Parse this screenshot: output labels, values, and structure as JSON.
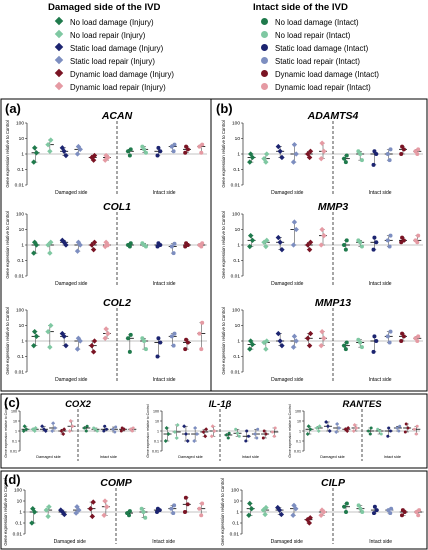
{
  "legend": {
    "damaged_title": "Damaged side of the IVD",
    "intact_title": "Intact side of the IVD",
    "damaged_items": [
      {
        "label": "No load damage (Injury)",
        "color": "#1f7a4c"
      },
      {
        "label": "No load repair (Injury)",
        "color": "#7fc8a2"
      },
      {
        "label": "Static load damage (Injury)",
        "color": "#1c2470"
      },
      {
        "label": "Static load repair (Injury)",
        "color": "#7d8ec0"
      },
      {
        "label": "Dynamic load damage (Injury)",
        "color": "#7a1424"
      },
      {
        "label": "Dynamic load repair (Injury)",
        "color": "#e59aa3"
      }
    ],
    "intact_items": [
      {
        "label": "No load damage (Intact)",
        "color": "#1f7a4c"
      },
      {
        "label": "No load repair (Intact)",
        "color": "#7fc8a2"
      },
      {
        "label": "Static load damage (Intact)",
        "color": "#1c2470"
      },
      {
        "label": "Static load repair (Intact)",
        "color": "#7d8ec0"
      },
      {
        "label": "Dynamic load damage (Intact)",
        "color": "#7a1424"
      },
      {
        "label": "Dynamic load repair (Intact)",
        "color": "#e59aa3"
      }
    ]
  },
  "panel_labels": {
    "a": "(a)",
    "b": "(b)",
    "c": "(c)",
    "d": "(d)"
  },
  "chart_data": [
    {
      "type": "scatter",
      "panel": "a",
      "title": "ACAN",
      "ylabel": "Gene expression relative to Control",
      "yscale": "log",
      "ylim": [
        0.01,
        100
      ],
      "yticks": [
        "100",
        "10",
        "1",
        "0.1",
        "0.01"
      ],
      "group_labels": [
        "Damaged side",
        "Intact side"
      ],
      "groups": [
        [
          0.3,
          1.2,
          2.5
        ],
        [
          1.5,
          4,
          8
        ],
        [
          0.8,
          1.5,
          2.5
        ],
        [
          1,
          2,
          3
        ],
        [
          0.4,
          0.6,
          0.8
        ],
        [
          0.4,
          0.6,
          0.8
        ],
        [
          0.8,
          1.5,
          2
        ],
        [
          1.2,
          2,
          3
        ],
        [
          0.8,
          1.5,
          2.5
        ],
        [
          1.5,
          3,
          4
        ],
        [
          1.2,
          2,
          3
        ],
        [
          1.2,
          3,
          4
        ]
      ]
    },
    {
      "type": "scatter",
      "panel": "a",
      "title": "COL1",
      "ylabel": "Gene expression relative to Control",
      "yscale": "log",
      "ylim": [
        0.01,
        100
      ],
      "yticks": [
        "100",
        "10",
        "1",
        "0.1",
        "0.01"
      ],
      "group_labels": [
        "Damaged side",
        "Intact side"
      ],
      "groups": [
        [
          0.3,
          1,
          1.5
        ],
        [
          0.3,
          1,
          1.5
        ],
        [
          1,
          1.5,
          2
        ],
        [
          0.4,
          1,
          1.5
        ],
        [
          0.5,
          1,
          1.5
        ],
        [
          0.8,
          1,
          1.5
        ],
        [
          0.8,
          1,
          1.3
        ],
        [
          0.8,
          1,
          1.3
        ],
        [
          0.8,
          1,
          1.3
        ],
        [
          0.3,
          0.8,
          1.2
        ],
        [
          0.8,
          1,
          1.3
        ],
        [
          0.8,
          1,
          1.3
        ]
      ]
    },
    {
      "type": "scatter",
      "panel": "a",
      "title": "COL2",
      "ylabel": "Gene expression relative to Control",
      "yscale": "log",
      "ylim": [
        0.01,
        100
      ],
      "yticks": [
        "100",
        "10",
        "1",
        "0.1",
        "0.01"
      ],
      "group_labels": [
        "Damaged side",
        "Intact side"
      ],
      "groups": [
        [
          0.5,
          2,
          4
        ],
        [
          0.4,
          4,
          10
        ],
        [
          0.5,
          2,
          3
        ],
        [
          0.3,
          1,
          1.5
        ],
        [
          0.2,
          0.5,
          1
        ],
        [
          1.5,
          3,
          6
        ],
        [
          0.2,
          1.5,
          2.5
        ],
        [
          0.3,
          1,
          1.5
        ],
        [
          0.1,
          0.8,
          1.5
        ],
        [
          0.5,
          2,
          3
        ],
        [
          0.3,
          0.8,
          1.2
        ],
        [
          0.3,
          3,
          15
        ]
      ]
    },
    {
      "type": "scatter",
      "panel": "b",
      "title": "ADAMTS4",
      "ylabel": "Gene expression relative to Control",
      "yscale": "log",
      "ylim": [
        0.01,
        100
      ],
      "yticks": [
        "100",
        "10",
        "1",
        "0.1",
        "0.01"
      ],
      "group_labels": [
        "Damaged side",
        "Intact side"
      ],
      "groups": [
        [
          0.3,
          0.6,
          1
        ],
        [
          0.3,
          0.5,
          1
        ],
        [
          0.6,
          1.5,
          3
        ],
        [
          0.3,
          1,
          4
        ],
        [
          0.6,
          1,
          1.5
        ],
        [
          0.5,
          1.5,
          5
        ],
        [
          0.3,
          0.5,
          0.8
        ],
        [
          0.4,
          1,
          1.5
        ],
        [
          0.2,
          1,
          1.5
        ],
        [
          0.4,
          1,
          2
        ],
        [
          1,
          2,
          3
        ],
        [
          1,
          1.5,
          2
        ]
      ]
    },
    {
      "type": "scatter",
      "panel": "b",
      "title": "MMP3",
      "ylabel": "Gene expression relative to Control",
      "yscale": "log",
      "ylim": [
        0.01,
        100
      ],
      "yticks": [
        "100",
        "10",
        "1",
        "0.1",
        "0.01"
      ],
      "group_labels": [
        "Damaged side",
        "Intact side"
      ],
      "groups": [
        [
          0.8,
          2,
          4
        ],
        [
          0.8,
          1.5,
          2
        ],
        [
          0.5,
          1.5,
          3
        ],
        [
          1,
          10,
          30
        ],
        [
          0.5,
          1,
          1.5
        ],
        [
          1,
          4,
          10
        ],
        [
          0.5,
          1,
          2
        ],
        [
          0.8,
          1.5,
          2
        ],
        [
          0.5,
          1.5,
          3
        ],
        [
          0.8,
          2,
          4
        ],
        [
          1.5,
          2,
          3
        ],
        [
          1.5,
          2,
          4
        ]
      ]
    },
    {
      "type": "scatter",
      "panel": "b",
      "title": "MMP13",
      "ylabel": "Gene expression relative to Control",
      "yscale": "log",
      "ylim": [
        0.01,
        100
      ],
      "yticks": [
        "100",
        "10",
        "1",
        "0.1",
        "0.01"
      ],
      "group_labels": [
        "Damaged side",
        "Intact side"
      ],
      "groups": [
        [
          0.3,
          0.6,
          1
        ],
        [
          0.3,
          0.8,
          1
        ],
        [
          0.5,
          1,
          3
        ],
        [
          0.4,
          1,
          2
        ],
        [
          0.5,
          1.5,
          3
        ],
        [
          0.5,
          1.5,
          4
        ],
        [
          0.3,
          0.5,
          0.8
        ],
        [
          0.4,
          0.8,
          1.2
        ],
        [
          0.2,
          1,
          2
        ],
        [
          0.8,
          2,
          4
        ],
        [
          1,
          2,
          3
        ],
        [
          1,
          1.5,
          2
        ]
      ]
    },
    {
      "type": "scatter",
      "panel": "c",
      "title": "COX2",
      "ylabel": "Gene expression relative to Control",
      "yscale": "log",
      "ylim": [
        0.01,
        100
      ],
      "yticks": [
        "100",
        "10",
        "1",
        "0.1",
        "0.01"
      ],
      "group_labels": [
        "Damaged side",
        "Intact side"
      ],
      "groups": [
        [
          1,
          1.5,
          3
        ],
        [
          1,
          1.5,
          2
        ],
        [
          1,
          1.5,
          3
        ],
        [
          1,
          2,
          6
        ],
        [
          0.5,
          1,
          1.5
        ],
        [
          1,
          3,
          10
        ],
        [
          1,
          2,
          3
        ],
        [
          1,
          1.5,
          2
        ],
        [
          1,
          1.5,
          3
        ],
        [
          0.8,
          1.5,
          2.5
        ],
        [
          1,
          1.5,
          2
        ],
        [
          1,
          1.5,
          2
        ]
      ]
    },
    {
      "type": "scatter",
      "panel": "c",
      "title": "IL-1β",
      "ylabel": "Gene expression relative to Control",
      "yscale": "log",
      "ylim": [
        0.01,
        100
      ],
      "yticks": [
        "100",
        "10",
        "1",
        "0.1",
        "0.01"
      ],
      "group_labels": [
        "Damaged side",
        "Intact side"
      ],
      "groups": [
        [
          0.1,
          0.5,
          2
        ],
        [
          0.2,
          0.8,
          4
        ],
        [
          0.1,
          0.5,
          3
        ],
        [
          0.1,
          0.5,
          2
        ],
        [
          0.3,
          0.8,
          1.5
        ],
        [
          0.3,
          1,
          3
        ],
        [
          0.2,
          0.4,
          0.6
        ],
        [
          0.3,
          0.6,
          1.5
        ],
        [
          0.1,
          0.3,
          1
        ],
        [
          0.2,
          0.5,
          1.5
        ],
        [
          0.2,
          0.5,
          1
        ],
        [
          0.3,
          0.8,
          2
        ]
      ]
    },
    {
      "type": "scatter",
      "panel": "c",
      "title": "RANTES",
      "ylabel": "Gene expression relative to Control",
      "yscale": "log",
      "ylim": [
        0.01,
        100
      ],
      "yticks": [
        "100",
        "10",
        "1",
        "0.1",
        "0.01"
      ],
      "group_labels": [
        "Damaged side",
        "Intact side"
      ],
      "groups": [
        [
          0.5,
          1.5,
          3
        ],
        [
          1,
          2,
          3
        ],
        [
          1,
          3,
          8
        ],
        [
          0.8,
          2,
          5
        ],
        [
          1,
          1.5,
          2
        ],
        [
          1,
          2,
          4
        ],
        [
          0.5,
          1,
          2
        ],
        [
          0.5,
          1,
          1.5
        ],
        [
          0.3,
          1,
          2
        ],
        [
          1,
          2,
          3
        ],
        [
          0.8,
          2,
          5
        ],
        [
          0.5,
          1.5,
          3
        ]
      ]
    },
    {
      "type": "scatter",
      "panel": "d",
      "title": "COMP",
      "ylabel": "Gene expression relative to Control",
      "yscale": "log",
      "ylim": [
        0.01,
        100
      ],
      "yticks": [
        "100",
        "10",
        "1",
        "0.1",
        "0.01"
      ],
      "group_labels": [
        "Damaged side",
        "Intact side"
      ],
      "groups": [
        [
          0.1,
          1,
          2
        ],
        [
          0.4,
          1.5,
          3
        ],
        [
          0.6,
          1,
          1.5
        ],
        [
          0.8,
          1.5,
          3
        ],
        [
          0.4,
          2,
          8
        ],
        [
          0.5,
          3,
          10
        ],
        [
          0.5,
          0.8,
          1.2
        ],
        [
          0.3,
          1,
          2
        ],
        [
          1,
          1.5,
          2
        ],
        [
          0.8,
          2,
          4
        ],
        [
          1,
          5,
          20
        ],
        [
          0.5,
          2,
          6
        ]
      ]
    },
    {
      "type": "scatter",
      "panel": "d",
      "title": "CILP",
      "ylabel": "Gene expression relative to Control",
      "yscale": "log",
      "ylim": [
        0.01,
        100
      ],
      "yticks": [
        "100",
        "10",
        "1",
        "0.1",
        "0.01"
      ],
      "group_labels": [
        "Damaged side",
        "Intact side"
      ],
      "groups": [
        [
          0.5,
          2,
          6
        ],
        [
          0.6,
          1.5,
          2.5
        ],
        [
          0.6,
          1.5,
          2.5
        ],
        [
          0.5,
          2,
          4
        ],
        [
          0.1,
          0.2,
          0.3
        ],
        [
          0.5,
          1,
          1.5
        ],
        [
          1,
          3,
          6
        ],
        [
          1,
          2,
          4
        ],
        [
          0.8,
          1.5,
          3
        ],
        [
          0.8,
          1.5,
          2
        ],
        [
          0.5,
          1,
          1.5
        ],
        [
          0.5,
          1,
          1.5
        ]
      ]
    }
  ]
}
